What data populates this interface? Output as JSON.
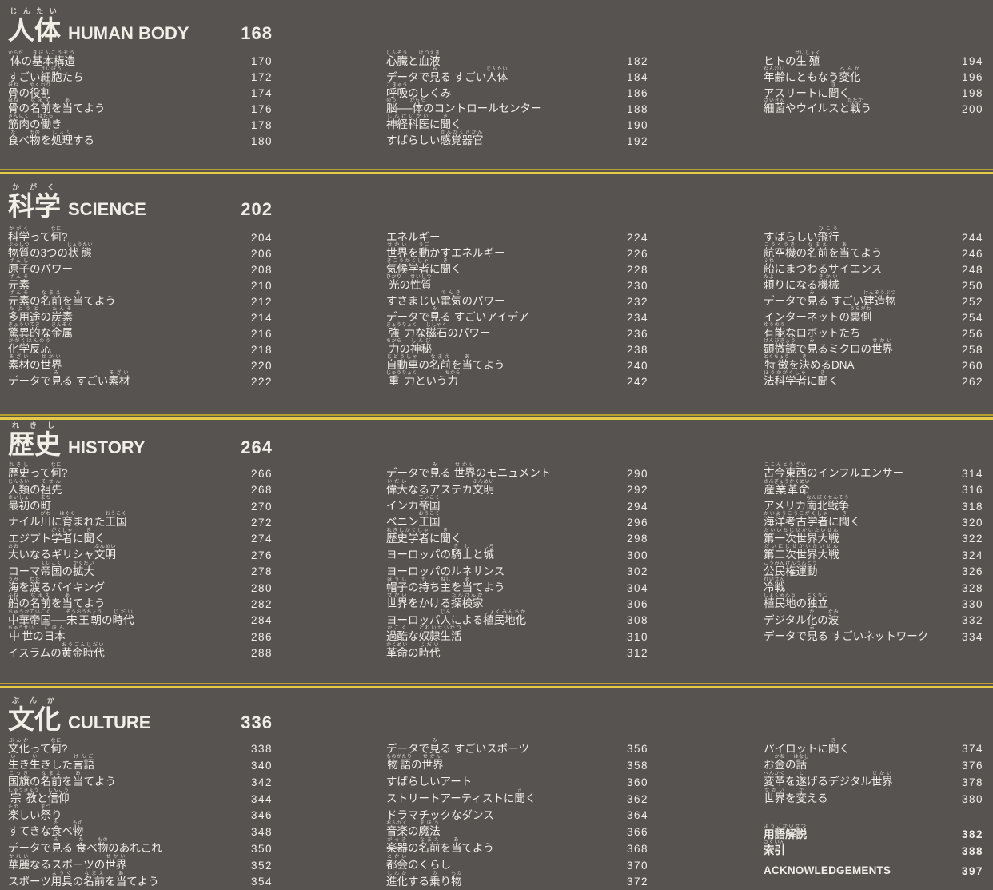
{
  "page": {
    "colors": {
      "bg": "#575350",
      "text": "#f1eee8",
      "text_dim": "#ddd8d0",
      "rule_bright": "#e6c945",
      "rule_dull": "#b89d33"
    }
  },
  "sections": [
    {
      "title_ja": "人体[じんたい]",
      "title_en": "HUMAN BODY",
      "page": "168",
      "columns": [
        [
          {
            "t": "体[からだ]の基本構造[きほんこうぞう]",
            "p": "170"
          },
          {
            "t": "すごい細胞[さいぼう]たち",
            "p": "172"
          },
          {
            "t": "骨[ほね]の役割[やくわり]",
            "p": "174"
          },
          {
            "t": "骨[ほね]の名前[なまえ]を当[あ]てよう",
            "p": "176"
          },
          {
            "t": "筋肉[きんにく]の働[はたら]き",
            "p": "178"
          },
          {
            "t": "食[た]べ物[もの]を処理[しょり]する",
            "p": "180"
          }
        ],
        [
          {
            "t": "心臓[しんぞう]と血液[けつえき]",
            "p": "182"
          },
          {
            "t": "データで見[み]る すごい人体[じんたい]",
            "p": "184"
          },
          {
            "t": "呼吸[こきゅう]のしくみ",
            "p": "186"
          },
          {
            "t": "脳[のう]──体[からだ]のコントロールセンター",
            "p": "188"
          },
          {
            "t": "神経科医[しんけいかい]に聞[き]く",
            "p": "190"
          },
          {
            "t": "すばらしい感覚器官[かんかくきかん]",
            "p": "192"
          }
        ],
        [
          {
            "t": "ヒトの生殖[せいしょく]",
            "p": "194"
          },
          {
            "t": "年齢[ねんれい]にともなう変化[へんか]",
            "p": "196"
          },
          {
            "t": "アスリートに聞[き]く",
            "p": "198"
          },
          {
            "t": "細菌[さいきん]やウイルスと戦[たたか]う",
            "p": "200"
          }
        ]
      ]
    },
    {
      "title_ja": "科学[かがく]",
      "title_en": "SCIENCE",
      "page": "202",
      "columns": [
        [
          {
            "t": "科学[かがく]って何[なに]?",
            "p": "204"
          },
          {
            "t": "物質[ぶっしつ]の3つの状態[じょうたい]",
            "p": "206"
          },
          {
            "t": "原子[げんし]のパワー",
            "p": "208"
          },
          {
            "t": "元素[げんそ]",
            "p": "210"
          },
          {
            "t": "元素[げんそ]の名前[なまえ]を当[あ]てよう",
            "p": "212"
          },
          {
            "t": "多用途[たようと]の炭素[たんそ]",
            "p": "214"
          },
          {
            "t": "驚異的[きょういてき]な金属[きんぞく]",
            "p": "216"
          },
          {
            "t": "化学反応[かがくはんのう]",
            "p": "218"
          },
          {
            "t": "素材[そざい]の世界[せかい]",
            "p": "220"
          },
          {
            "t": "データで見[み]る すごい素材[そざい]",
            "p": "222"
          }
        ],
        [
          {
            "t": "エネルギー",
            "p": "224"
          },
          {
            "t": "世界[せかい]を動[うご]かすエネルギー",
            "p": "226"
          },
          {
            "t": "気候学者[きこうがくしゃ]に聞[き]く",
            "p": "228"
          },
          {
            "t": "光[ひかり]の性質[せいしつ]",
            "p": "230"
          },
          {
            "t": "すさまじい電気[でんき]のパワー",
            "p": "232"
          },
          {
            "t": "データで見[み]る すごいアイデア",
            "p": "234"
          },
          {
            "t": "強力[きょうりょく]な磁石[じしゃく]のパワー",
            "p": "236"
          },
          {
            "t": "力[ちから]の神秘[しんぴ]",
            "p": "238"
          },
          {
            "t": "自動車[じどうしゃ]の名前[なまえ]を当[あ]てよう",
            "p": "240"
          },
          {
            "t": "重力[じゅうりょく]という力[ちから]",
            "p": "242"
          }
        ],
        [
          {
            "t": "すばらしい飛行[ひこう]",
            "p": "244"
          },
          {
            "t": "航空機[こうくうき]の名前[なまえ]を当[あ]てよう",
            "p": "246"
          },
          {
            "t": "船[ふね]にまつわるサイエンス",
            "p": "248"
          },
          {
            "t": "頼[たよ]りになる機械[きかい]",
            "p": "250"
          },
          {
            "t": "データで見[み]る すごい建造物[けんぞうぶつ]",
            "p": "252"
          },
          {
            "t": "インターネットの裏側[うらがわ]",
            "p": "254"
          },
          {
            "t": "有能[ゆうのう]なロボットたち",
            "p": "256"
          },
          {
            "t": "顕微鏡[けんびきょう]で見[み]るミクロの世界[せかい]",
            "p": "258"
          },
          {
            "t": "特徴[とくちょう]を決[き]めるDNA",
            "p": "260"
          },
          {
            "t": "法科学者[ほうかがくしゃ]に聞[き]く",
            "p": "262"
          }
        ]
      ]
    },
    {
      "title_ja": "歴史[れきし]",
      "title_en": "HISTORY",
      "page": "264",
      "columns": [
        [
          {
            "t": "歴史[れきし]って何[なに]?",
            "p": "266"
          },
          {
            "t": "人類[じんるい]の祖先[そせん]",
            "p": "268"
          },
          {
            "t": "最初[さいしょ]の町[まち]",
            "p": "270"
          },
          {
            "t": "ナイル川[がわ]に育[はぐく]まれた王国[おうこく]",
            "p": "272"
          },
          {
            "t": "エジプト学者[がくしゃ]に聞[き]く",
            "p": "274"
          },
          {
            "t": "大[おお]いなるギリシャ文明[ぶんめい]",
            "p": "276"
          },
          {
            "t": "ローマ帝国[ていこく]の拡大[かくだい]",
            "p": "278"
          },
          {
            "t": "海[うみ]を渡[わた]るバイキング",
            "p": "280"
          },
          {
            "t": "船[ふね]の名前[なまえ]を当[あ]てよう",
            "p": "282"
          },
          {
            "t": "中華帝国[ちゅうかていこく]──宋王朝[そうおうちょう]の時代[じだい]",
            "p": "284"
          },
          {
            "t": "中世[ちゅうせい]の日本[にほん]",
            "p": "286"
          },
          {
            "t": "イスラムの黄金時代[おうごんじだい]",
            "p": "288"
          }
        ],
        [
          {
            "t": "データで見[み]る 世界[せかい]のモニュメント",
            "p": "290"
          },
          {
            "t": "偉大[いだい]なるアステカ文明[ぶんめい]",
            "p": "292"
          },
          {
            "t": "インカ帝国[ていこく]",
            "p": "294"
          },
          {
            "t": "ベニン王国[おうこく]",
            "p": "296"
          },
          {
            "t": "歴史学者[れきしがくしゃ]に聞[き]く",
            "p": "298"
          },
          {
            "t": "ヨーロッパの騎士[きし]と城[しろ]",
            "p": "300"
          },
          {
            "t": "ヨーロッパのルネサンス",
            "p": "302"
          },
          {
            "t": "帽子[ぼうし]の持[も]ち主[ぬし]を当[あ]てよう",
            "p": "304"
          },
          {
            "t": "世界[せかい]をかける探検家[たんけんか]",
            "p": "306"
          },
          {
            "t": "ヨーロッパ人[じん]による植民地化[しょくみんちか]",
            "p": "308"
          },
          {
            "t": "過酷[かこく]な奴隷生活[どれいせいかつ]",
            "p": "310"
          },
          {
            "t": "革命[かくめい]の時代[じだい]",
            "p": "312"
          }
        ],
        [
          {
            "t": "古今東西[ここんとうざい]のインフルエンサー",
            "p": "314"
          },
          {
            "t": "産業革命[さんぎょうかくめい]",
            "p": "316"
          },
          {
            "t": "アメリカ南北戦争[なんぼくせんそう]",
            "p": "318"
          },
          {
            "t": "海洋考古学者[かいようこうこがくしゃ]に聞[き]く",
            "p": "320"
          },
          {
            "t": "第一次世界大戦[だいいちじせかいたいせん]",
            "p": "322"
          },
          {
            "t": "第二次世界大戦[だいにじせかいたいせん]",
            "p": "324"
          },
          {
            "t": "公民権運動[こうみんけんうんどう]",
            "p": "326"
          },
          {
            "t": "冷戦[れいせん]",
            "p": "328"
          },
          {
            "t": "植民地[しょくみんち]の独立[どくりつ]",
            "p": "330"
          },
          {
            "t": "デジタル化[か]の波[なみ]",
            "p": "332"
          },
          {
            "t": "データで見[み]る すごいネットワーク",
            "p": "334"
          }
        ]
      ]
    },
    {
      "title_ja": "文化[ぶんか]",
      "title_en": "CULTURE",
      "page": "336",
      "columns": [
        [
          {
            "t": "文化[ぶんか]って何[なに]?",
            "p": "338"
          },
          {
            "t": "生[い]き生[い]きした言語[げんご]",
            "p": "340"
          },
          {
            "t": "国旗[こっき]の名前[なまえ]を当[あ]てよう",
            "p": "342"
          },
          {
            "t": "宗教[しゅうきょう]と信仰[しんこう]",
            "p": "344"
          },
          {
            "t": "楽[たの]しい祭[まつ]り",
            "p": "346"
          },
          {
            "t": "すてきな食[た]べ物[もの]",
            "p": "348"
          },
          {
            "t": "データで見[み]る 食[た]べ物[もの]のあれこれ",
            "p": "350"
          },
          {
            "t": "華麗[かれい]なるスポーツの世界[せかい]",
            "p": "352"
          },
          {
            "t": "スポーツ用具[ようぐ]の名前[なまえ]を当[あ]てよう",
            "p": "354"
          }
        ],
        [
          {
            "t": "データで見[み]る すごいスポーツ",
            "p": "356"
          },
          {
            "t": "物語[ものがたり]の世界[せかい]",
            "p": "358"
          },
          {
            "t": "すばらしいアート",
            "p": "360"
          },
          {
            "t": "ストリートアーティストに聞[き]く",
            "p": "362"
          },
          {
            "t": "ドラマチックなダンス",
            "p": "364"
          },
          {
            "t": "音楽[おんがく]の魔法[まほう]",
            "p": "366"
          },
          {
            "t": "楽器[がっき]の名前[なまえ]を当[あ]てよう",
            "p": "368"
          },
          {
            "t": "都会[とかい]のくらし",
            "p": "370"
          },
          {
            "t": "進化[しんか]する乗[の]り物[もの]",
            "p": "372"
          }
        ],
        [
          {
            "t": "パイロットに聞[き]く",
            "p": "374"
          },
          {
            "t": "お金[かね]の話[はなし]",
            "p": "376"
          },
          {
            "t": "変革[へんかく]を遂[と]げるデジタル世界[せかい]",
            "p": "378"
          },
          {
            "t": "世界[せかい]を変[か]える",
            "p": "380"
          }
        ]
      ]
    }
  ],
  "end_matter": [
    {
      "t": "用語解説[ようごかいせつ]",
      "p": "382"
    },
    {
      "t": "索引[さくいん]",
      "p": "388"
    },
    {
      "t": "ACKNOWLEDGEMENTS",
      "p": "397"
    }
  ]
}
